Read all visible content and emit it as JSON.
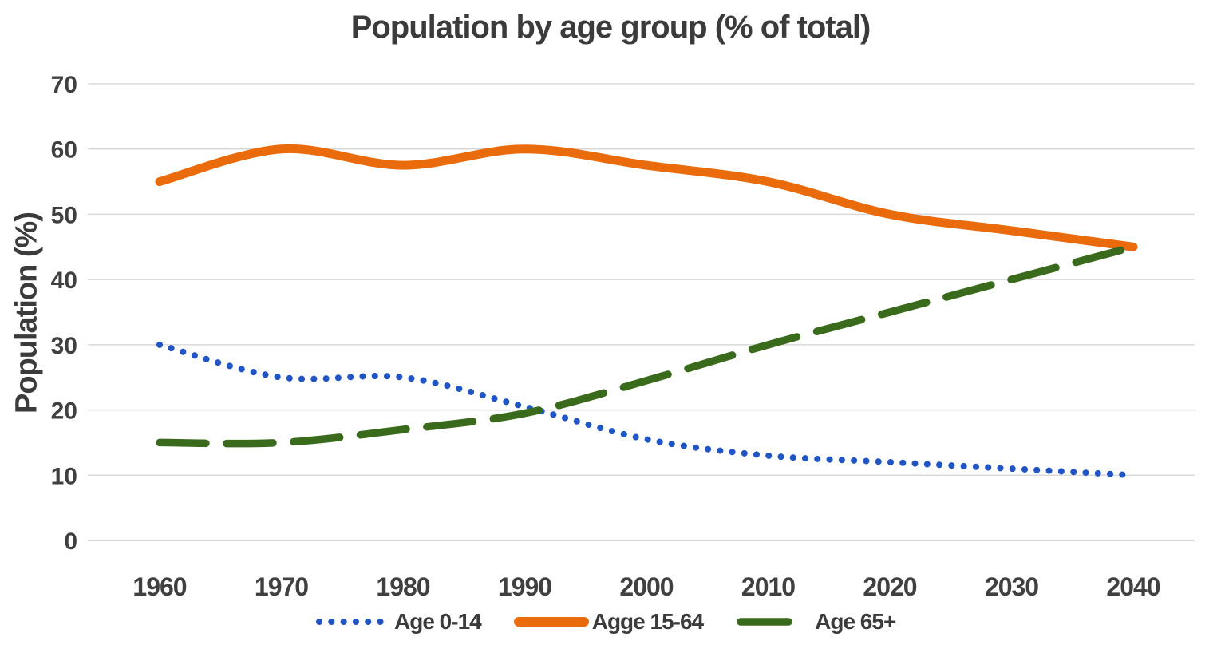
{
  "title": "Population by age group (% of total)",
  "colors": {
    "blue": "#2255C4",
    "orange": "#E96B0C",
    "green": "#3A6B1D",
    "gridline": "#D9D9D9",
    "baseline": "#C9C9C9",
    "tick_text": "#404040",
    "title_text": "#3B3B3B"
  },
  "chart_data": {
    "type": "line",
    "title": "Population by age group (% of total)",
    "xlabel": "",
    "ylabel": "Population (%)",
    "x": [
      1960,
      1970,
      1980,
      1990,
      2000,
      2010,
      2020,
      2030,
      2040
    ],
    "ylim": [
      0,
      70
    ],
    "ytick_step": 10,
    "grid": true,
    "legend_position": "bottom",
    "series": [
      {
        "name": "Age 0-14",
        "style": "dotted",
        "color": "#2255C4",
        "values": [
          30,
          25,
          25,
          20.5,
          15.5,
          13,
          12,
          11,
          10
        ]
      },
      {
        "name": "Agge 15-64",
        "style": "solid",
        "color": "#E96B0C",
        "values": [
          55,
          60,
          57.5,
          60,
          57.5,
          55,
          50,
          47.5,
          45
        ]
      },
      {
        "name": "Age 65+",
        "style": "dashed",
        "color": "#3A6B1D",
        "values": [
          15,
          15,
          17,
          19.5,
          24.5,
          30,
          35,
          40,
          45
        ]
      }
    ]
  }
}
